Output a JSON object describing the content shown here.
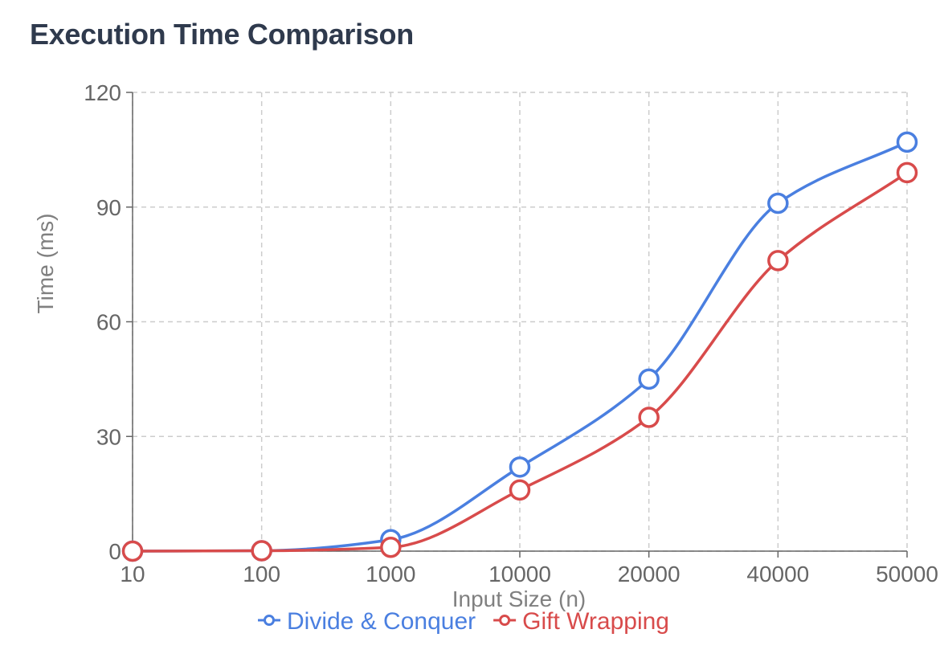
{
  "title": "Execution Time Comparison",
  "chart_data": {
    "type": "line",
    "title": "Execution Time Comparison",
    "xlabel": "Input Size (n)",
    "ylabel": "Time (ms)",
    "categories": [
      "10",
      "100",
      "1000",
      "10000",
      "20000",
      "40000",
      "50000"
    ],
    "ylim": [
      0,
      120
    ],
    "yticks": [
      0,
      30,
      60,
      90,
      120
    ],
    "grid": true,
    "legend_position": "bottom",
    "series": [
      {
        "name": "Divide & Conquer",
        "color": "#4a7fe0",
        "values": [
          0.01,
          0.1,
          3,
          22,
          45,
          91,
          107
        ]
      },
      {
        "name": "Gift Wrapping",
        "color": "#d84b4b",
        "values": [
          0.01,
          0.1,
          1,
          16,
          35,
          76,
          99
        ]
      }
    ]
  }
}
